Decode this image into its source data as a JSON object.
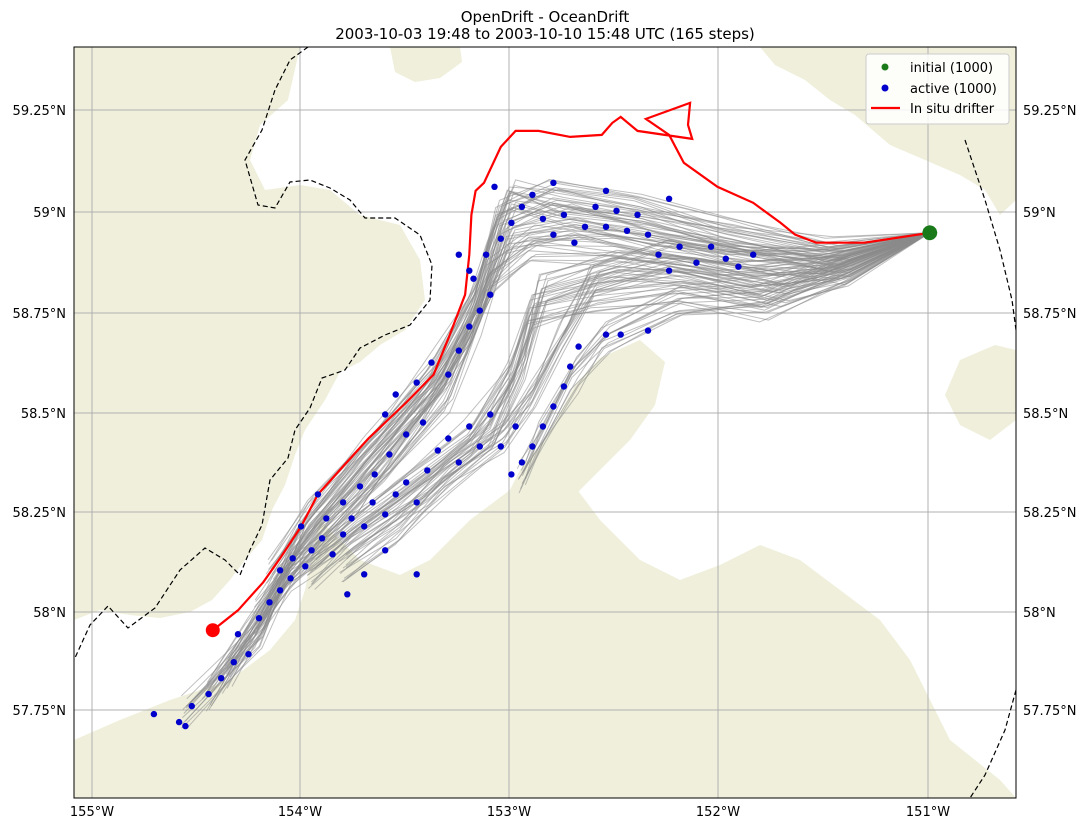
{
  "chart_data": {
    "type": "scatter",
    "title": "OpenDrift - OceanDrift",
    "subtitle": "2003-10-03 19:48 to 2003-10-10 15:48 UTC (165 steps)",
    "xlim": [
      -155.08,
      -150.6
    ],
    "ylim": [
      57.54,
      59.42
    ],
    "x_ticks": [
      -155,
      -154,
      -153,
      -152,
      -151
    ],
    "x_tick_labels": [
      "155°W",
      "154°W",
      "153°W",
      "152°W",
      "151°W"
    ],
    "y_ticks": [
      57.75,
      58,
      58.25,
      58.5,
      58.75,
      59,
      59.25
    ],
    "y_tick_labels": [
      "57.75°N",
      "58°N",
      "58.25°N",
      "58.5°N",
      "58.75°N",
      "59°N",
      "59.25°N"
    ],
    "grid": true,
    "legend": {
      "position": "top-right",
      "entries": [
        {
          "label": "initial (1000)",
          "color": "#1a7a1a",
          "marker": "dot"
        },
        {
          "label": "active (1000)",
          "color": "#0000cc",
          "marker": "dot"
        },
        {
          "label": "In situ drifter",
          "color": "#ff0000",
          "marker": "line"
        }
      ]
    },
    "colors": {
      "initial": "#1a7a1a",
      "active": "#0000cc",
      "drifter": "#ff0000",
      "trajectory": "#808080",
      "land": "#efefdb"
    },
    "initial_position": {
      "lon": -151.01,
      "lat": 58.955
    },
    "drifter_track": [
      [
        -151.01,
        58.955
      ],
      [
        -151.32,
        58.93
      ],
      [
        -151.55,
        58.93
      ],
      [
        -151.65,
        58.95
      ],
      [
        -151.72,
        58.98
      ],
      [
        -151.85,
        59.03
      ],
      [
        -152.02,
        59.07
      ],
      [
        -152.18,
        59.13
      ],
      [
        -152.25,
        59.2
      ],
      [
        -152.36,
        59.24
      ],
      [
        -152.15,
        59.28
      ],
      [
        -152.16,
        59.225
      ],
      [
        -152.14,
        59.19
      ],
      [
        -152.4,
        59.21
      ],
      [
        -152.48,
        59.245
      ],
      [
        -152.52,
        59.23
      ],
      [
        -152.57,
        59.2
      ],
      [
        -152.72,
        59.195
      ],
      [
        -152.87,
        59.21
      ],
      [
        -152.98,
        59.21
      ],
      [
        -153.05,
        59.17
      ],
      [
        -153.13,
        59.08
      ],
      [
        -153.17,
        59.06
      ],
      [
        -153.19,
        59.0
      ],
      [
        -153.2,
        58.9
      ],
      [
        -153.22,
        58.8
      ],
      [
        -153.3,
        58.69
      ],
      [
        -153.37,
        58.6
      ],
      [
        -153.5,
        58.53
      ],
      [
        -153.68,
        58.44
      ],
      [
        -153.8,
        58.37
      ],
      [
        -153.92,
        58.3
      ],
      [
        -154.0,
        58.22
      ],
      [
        -154.05,
        58.18
      ],
      [
        -154.1,
        58.14
      ],
      [
        -154.18,
        58.08
      ],
      [
        -154.3,
        58.01
      ],
      [
        -154.42,
        57.96
      ]
    ],
    "drifter_end": {
      "lon": -154.42,
      "lat": 57.96
    },
    "trajectory_lines": [
      [
        [
          -151.01,
          58.955
        ],
        [
          -151.4,
          58.87
        ],
        [
          -151.8,
          58.78
        ],
        [
          -152.2,
          58.82
        ],
        [
          -152.6,
          58.8
        ],
        [
          -152.9,
          58.76
        ],
        [
          -153.0,
          58.6
        ],
        [
          -153.2,
          58.45
        ],
        [
          -153.55,
          58.3
        ],
        [
          -153.85,
          58.18
        ],
        [
          -154.05,
          58.1
        ],
        [
          -154.25,
          57.95
        ],
        [
          -154.45,
          57.8
        ]
      ],
      [
        [
          -151.01,
          58.955
        ],
        [
          -151.4,
          58.88
        ],
        [
          -151.9,
          58.9
        ],
        [
          -152.3,
          58.93
        ],
        [
          -152.7,
          58.98
        ],
        [
          -153.0,
          58.95
        ],
        [
          -153.15,
          58.75
        ],
        [
          -153.3,
          58.55
        ],
        [
          -153.6,
          58.37
        ],
        [
          -153.9,
          58.22
        ],
        [
          -154.1,
          58.08
        ],
        [
          -154.35,
          57.85
        ]
      ],
      [
        [
          -151.01,
          58.955
        ],
        [
          -151.4,
          58.86
        ],
        [
          -151.7,
          58.82
        ],
        [
          -152.1,
          58.86
        ],
        [
          -152.5,
          58.88
        ],
        [
          -152.85,
          58.82
        ],
        [
          -152.95,
          58.62
        ],
        [
          -153.1,
          58.45
        ],
        [
          -153.4,
          58.32
        ],
        [
          -153.75,
          58.2
        ],
        [
          -153.95,
          58.1
        ]
      ],
      [
        [
          -151.01,
          58.955
        ],
        [
          -151.5,
          58.9
        ],
        [
          -152.0,
          58.96
        ],
        [
          -152.4,
          59.02
        ],
        [
          -152.8,
          59.06
        ],
        [
          -153.05,
          59.0
        ],
        [
          -153.15,
          58.8
        ],
        [
          -153.35,
          58.6
        ],
        [
          -153.7,
          58.4
        ],
        [
          -154.0,
          58.2
        ],
        [
          -154.2,
          57.95
        ],
        [
          -154.55,
          57.76
        ]
      ],
      [
        [
          -151.01,
          58.955
        ],
        [
          -151.45,
          58.88
        ],
        [
          -151.85,
          58.85
        ],
        [
          -152.25,
          58.9
        ],
        [
          -152.6,
          58.84
        ],
        [
          -152.75,
          58.7
        ],
        [
          -152.9,
          58.55
        ],
        [
          -153.05,
          58.45
        ],
        [
          -153.3,
          58.35
        ],
        [
          -153.55,
          58.22
        ],
        [
          -153.8,
          58.12
        ]
      ],
      [
        [
          -151.01,
          58.955
        ],
        [
          -151.4,
          58.87
        ],
        [
          -151.8,
          58.8
        ],
        [
          -152.2,
          58.78
        ],
        [
          -152.55,
          58.7
        ],
        [
          -152.7,
          58.6
        ],
        [
          -152.85,
          58.45
        ],
        [
          -152.95,
          58.35
        ]
      ],
      [
        [
          -151.01,
          58.955
        ],
        [
          -151.5,
          58.89
        ],
        [
          -152.0,
          58.88
        ],
        [
          -152.5,
          58.92
        ],
        [
          -152.9,
          58.93
        ],
        [
          -153.1,
          58.85
        ],
        [
          -153.2,
          58.7
        ],
        [
          -153.45,
          58.5
        ],
        [
          -153.75,
          58.3
        ],
        [
          -154.05,
          58.12
        ],
        [
          -154.2,
          58.0
        ]
      ],
      [
        [
          -151.01,
          58.955
        ],
        [
          -151.45,
          58.9
        ],
        [
          -151.95,
          58.94
        ],
        [
          -152.35,
          58.98
        ],
        [
          -152.75,
          59.02
        ],
        [
          -153.0,
          59.05
        ],
        [
          -153.1,
          58.92
        ],
        [
          -153.18,
          58.78
        ],
        [
          -153.4,
          58.58
        ],
        [
          -153.65,
          58.42
        ],
        [
          -153.95,
          58.25
        ],
        [
          -154.15,
          58.1
        ]
      ]
    ],
    "active_particles": [
      [
        -154.7,
        57.75
      ],
      [
        -154.58,
        57.73
      ],
      [
        -154.52,
        57.77
      ],
      [
        -154.44,
        57.8
      ],
      [
        -154.38,
        57.84
      ],
      [
        -154.32,
        57.88
      ],
      [
        -154.25,
        57.9
      ],
      [
        -154.3,
        57.95
      ],
      [
        -154.2,
        57.99
      ],
      [
        -154.15,
        58.03
      ],
      [
        -154.1,
        58.06
      ],
      [
        -154.05,
        58.09
      ],
      [
        -154.1,
        58.11
      ],
      [
        -154.04,
        58.14
      ],
      [
        -153.98,
        58.12
      ],
      [
        -153.95,
        58.16
      ],
      [
        -153.9,
        58.19
      ],
      [
        -153.85,
        58.15
      ],
      [
        -153.8,
        58.2
      ],
      [
        -153.76,
        58.24
      ],
      [
        -153.7,
        58.22
      ],
      [
        -153.66,
        58.28
      ],
      [
        -153.6,
        58.25
      ],
      [
        -153.55,
        58.3
      ],
      [
        -153.5,
        58.33
      ],
      [
        -153.45,
        58.28
      ],
      [
        -153.4,
        58.36
      ],
      [
        -153.35,
        58.41
      ],
      [
        -153.3,
        58.44
      ],
      [
        -153.25,
        58.38
      ],
      [
        -153.2,
        58.47
      ],
      [
        -153.15,
        58.42
      ],
      [
        -153.42,
        58.48
      ],
      [
        -153.5,
        58.45
      ],
      [
        -153.58,
        58.4
      ],
      [
        -153.65,
        58.35
      ],
      [
        -153.72,
        58.32
      ],
      [
        -153.8,
        58.28
      ],
      [
        -153.88,
        58.24
      ],
      [
        -153.92,
        58.3
      ],
      [
        -153.6,
        58.5
      ],
      [
        -153.55,
        58.55
      ],
      [
        -153.45,
        58.58
      ],
      [
        -153.38,
        58.63
      ],
      [
        -153.3,
        58.6
      ],
      [
        -153.25,
        58.66
      ],
      [
        -153.2,
        58.72
      ],
      [
        -153.15,
        58.76
      ],
      [
        -153.1,
        58.8
      ],
      [
        -153.18,
        58.84
      ],
      [
        -153.12,
        58.9
      ],
      [
        -153.05,
        58.94
      ],
      [
        -153.0,
        58.98
      ],
      [
        -152.95,
        59.02
      ],
      [
        -152.9,
        59.05
      ],
      [
        -152.85,
        58.99
      ],
      [
        -152.8,
        58.95
      ],
      [
        -152.75,
        59.0
      ],
      [
        -152.7,
        58.93
      ],
      [
        -152.65,
        58.97
      ],
      [
        -152.6,
        59.02
      ],
      [
        -152.55,
        58.97
      ],
      [
        -152.5,
        59.01
      ],
      [
        -152.45,
        58.96
      ],
      [
        -152.4,
        59.0
      ],
      [
        -152.35,
        58.95
      ],
      [
        -152.3,
        58.9
      ],
      [
        -152.25,
        58.86
      ],
      [
        -152.2,
        58.92
      ],
      [
        -152.12,
        58.88
      ],
      [
        -152.05,
        58.92
      ],
      [
        -151.98,
        58.89
      ],
      [
        -151.92,
        58.87
      ],
      [
        -151.85,
        58.9
      ],
      [
        -152.25,
        59.04
      ],
      [
        -152.55,
        59.06
      ],
      [
        -152.8,
        59.08
      ],
      [
        -153.08,
        59.07
      ],
      [
        -153.2,
        58.86
      ],
      [
        -153.25,
        58.9
      ],
      [
        -152.95,
        58.38
      ],
      [
        -152.9,
        58.42
      ],
      [
        -152.85,
        58.47
      ],
      [
        -152.8,
        58.52
      ],
      [
        -152.75,
        58.57
      ],
      [
        -152.72,
        58.62
      ],
      [
        -152.68,
        58.67
      ],
      [
        -152.55,
        58.7
      ],
      [
        -152.48,
        58.7
      ],
      [
        -152.35,
        58.71
      ],
      [
        -153.0,
        58.35
      ],
      [
        -153.05,
        58.42
      ],
      [
        -153.1,
        58.5
      ],
      [
        -152.98,
        58.47
      ],
      [
        -153.45,
        58.1
      ],
      [
        -153.6,
        58.16
      ],
      [
        -153.7,
        58.1
      ],
      [
        -154.0,
        58.22
      ],
      [
        -153.78,
        58.05
      ],
      [
        -154.55,
        57.72
      ]
    ]
  }
}
